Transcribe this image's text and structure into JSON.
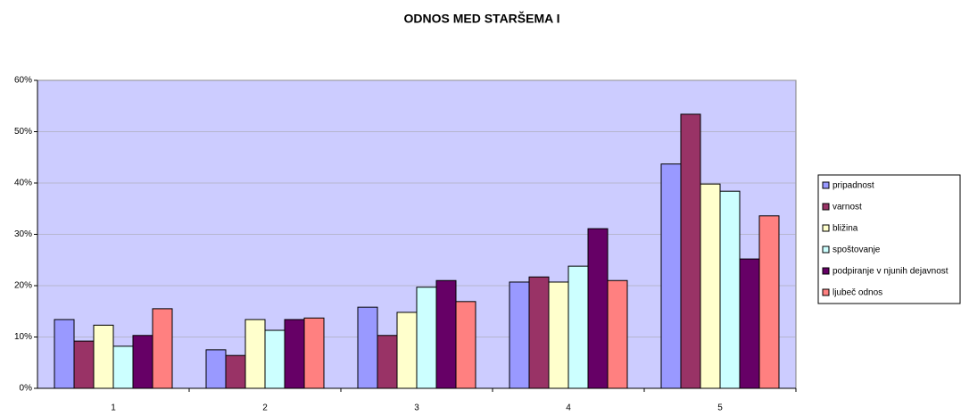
{
  "chart_data": {
    "type": "bar",
    "title": "ODNOS MED STARŠEMA I",
    "categories": [
      "1",
      "2",
      "3",
      "4",
      "5"
    ],
    "series": [
      {
        "name": "pripadnost",
        "color": "#9999ff",
        "values": [
          13.4,
          7.5,
          15.8,
          20.7,
          43.7
        ]
      },
      {
        "name": "varnost",
        "color": "#993366",
        "values": [
          9.2,
          6.4,
          10.3,
          21.7,
          53.4
        ]
      },
      {
        "name": "bližina",
        "color": "#ffffcc",
        "values": [
          12.3,
          13.4,
          14.8,
          20.7,
          39.8
        ]
      },
      {
        "name": "spoštovanje",
        "color": "#ccffff",
        "values": [
          8.2,
          11.3,
          19.7,
          23.8,
          38.4
        ]
      },
      {
        "name": "podpiranje v njunih dejavnost",
        "color": "#660066",
        "values": [
          10.3,
          13.4,
          21.0,
          31.1,
          25.2
        ]
      },
      {
        "name": "ljubeč odnos",
        "color": "#ff8080",
        "values": [
          15.5,
          13.7,
          16.9,
          21.0,
          33.6
        ]
      }
    ],
    "ylim": [
      0,
      60
    ],
    "yticks": [
      {
        "value": 0,
        "label": "0%"
      },
      {
        "value": 10,
        "label": "10%"
      },
      {
        "value": 20,
        "label": "20%"
      },
      {
        "value": 30,
        "label": "30%"
      },
      {
        "value": 40,
        "label": "40%"
      },
      {
        "value": 50,
        "label": "50%"
      },
      {
        "value": 60,
        "label": "60%"
      }
    ],
    "grid": true,
    "plot_background": "#ccccff",
    "legend": "right"
  }
}
